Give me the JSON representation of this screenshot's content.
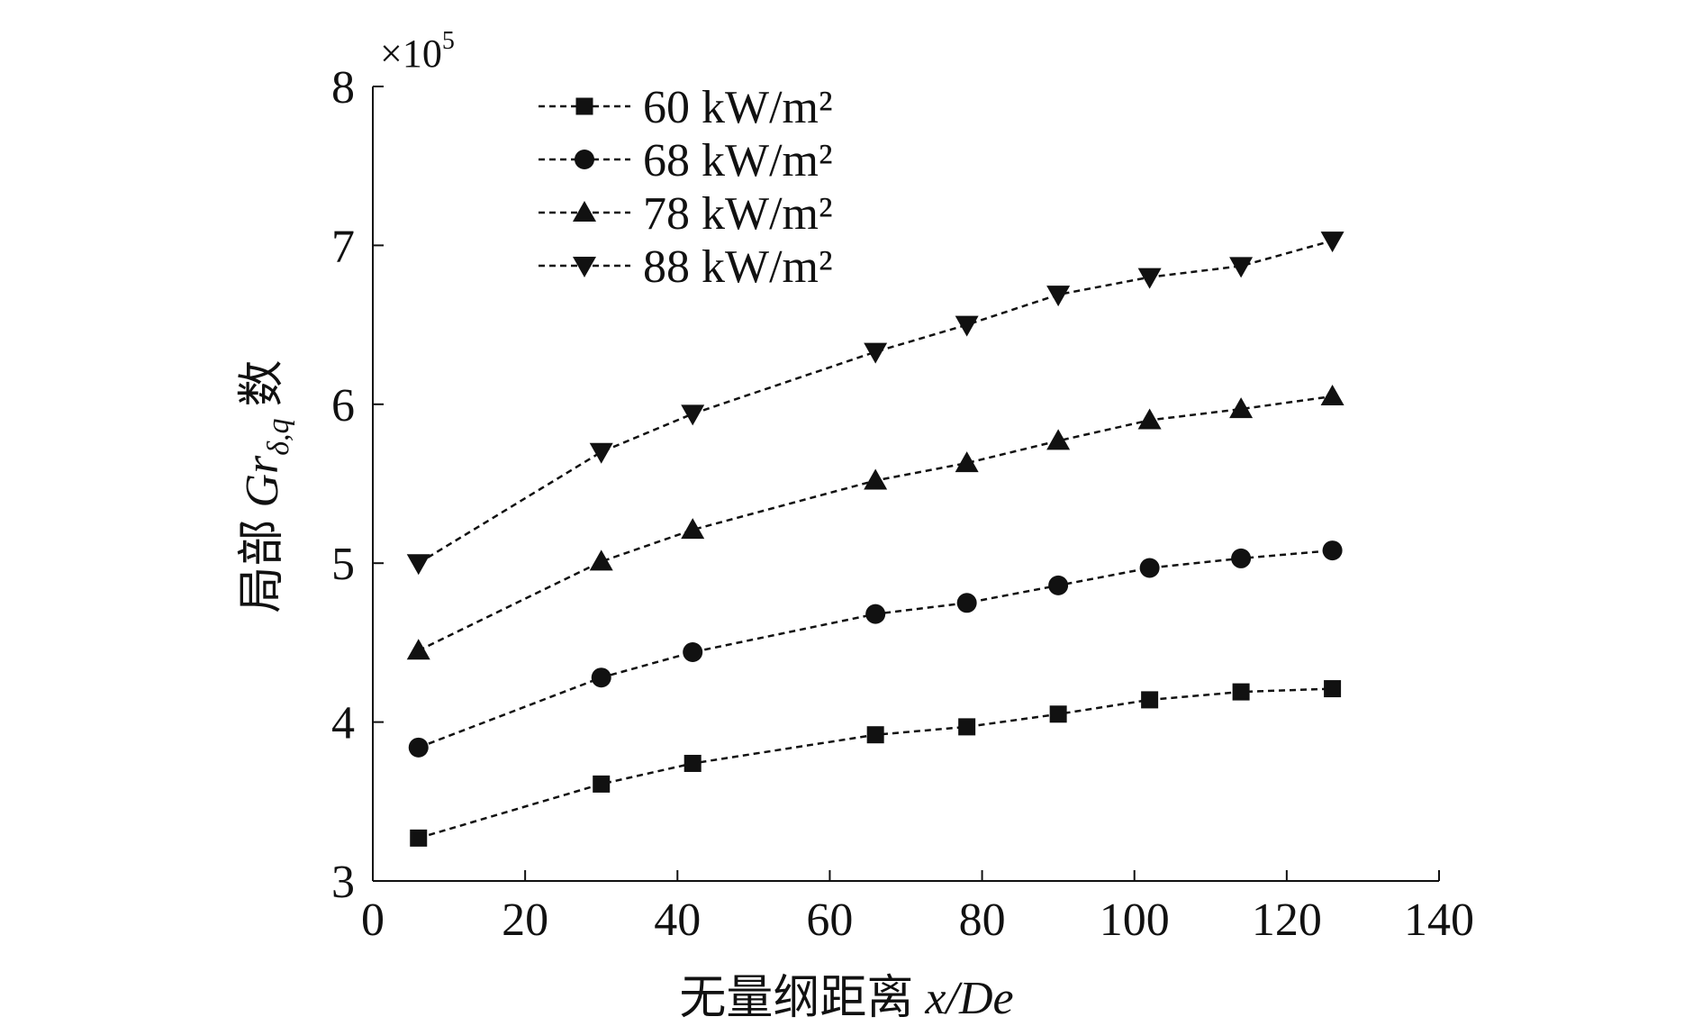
{
  "chart_data": {
    "type": "line",
    "x": [
      6,
      30,
      42,
      66,
      78,
      90,
      102,
      114,
      126
    ],
    "series": [
      {
        "name": "60 kW/m²",
        "marker": "square",
        "values": [
          3.27,
          3.61,
          3.74,
          3.92,
          3.97,
          4.05,
          4.14,
          4.19,
          4.21
        ]
      },
      {
        "name": "68 kW/m²",
        "marker": "circle",
        "values": [
          3.84,
          4.28,
          4.44,
          4.68,
          4.75,
          4.86,
          4.97,
          5.03,
          5.08
        ]
      },
      {
        "name": "78 kW/m²",
        "marker": "triangle-up",
        "values": [
          4.45,
          5.01,
          5.21,
          5.52,
          5.63,
          5.77,
          5.9,
          5.97,
          6.05
        ]
      },
      {
        "name": "88 kW/m²",
        "marker": "triangle-down",
        "values": [
          5.0,
          5.7,
          5.94,
          6.33,
          6.5,
          6.69,
          6.8,
          6.87,
          7.03
        ]
      }
    ],
    "xlabel_prefix": "无量纲距离 ",
    "xlabel_var": "x/De",
    "ylabel_prefix": "局部 ",
    "ylabel_var": "Gr",
    "ylabel_sub": "δ,q",
    "ylabel_suffix": " 数",
    "y_multiplier": "×10",
    "y_multiplier_exp": "5",
    "xlim": [
      0,
      140
    ],
    "ylim": [
      3,
      8
    ],
    "xticks": [
      0,
      20,
      40,
      60,
      80,
      100,
      120,
      140
    ],
    "yticks": [
      3,
      4,
      5,
      6,
      7,
      8
    ],
    "grid": false,
    "legend_position": "top-left",
    "color": "#111111"
  }
}
